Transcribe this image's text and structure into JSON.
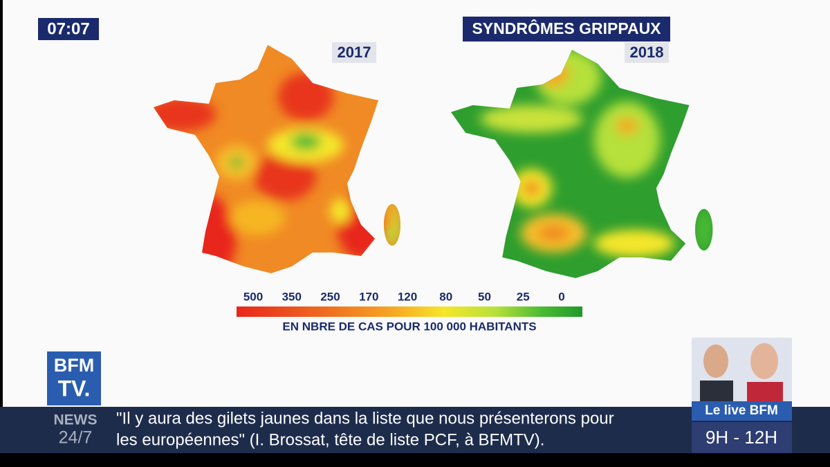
{
  "clock": "07:07",
  "title": "SYNDRÔMES GRIPPAUX",
  "maps": [
    {
      "year": "2017"
    },
    {
      "year": "2018"
    }
  ],
  "legend": {
    "labels": [
      "500",
      "350",
      "250",
      "170",
      "120",
      "80",
      "50",
      "25",
      "0"
    ],
    "caption": "EN NBRE DE CAS POUR 100 000 HABITANTS"
  },
  "logo": {
    "line1": "BFM",
    "line2": "TV."
  },
  "channel": {
    "line1": "NEWS",
    "line2": "24/7"
  },
  "ticker": {
    "line1": "\"Il y aura des gilets jaunes dans la liste que nous présenterons pour",
    "line2": "les européennes\" (I. Brossat, tête de liste PCF, à BFMTV)."
  },
  "show": {
    "name": "Le live BFM",
    "time": "9H - 12H"
  }
}
